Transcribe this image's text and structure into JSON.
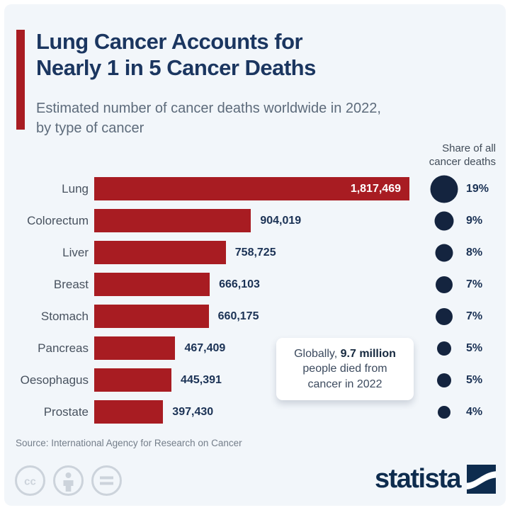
{
  "header": {
    "title_line1": "Lung Cancer Accounts for",
    "title_line2": "Nearly 1 in 5 Cancer Deaths",
    "subtitle_line1": "Estimated number of cancer deaths worldwide in 2022,",
    "subtitle_line2": "by type of cancer"
  },
  "share_header": {
    "line1": "Share of all",
    "line2": "cancer deaths"
  },
  "chart_data": {
    "type": "bar",
    "orientation": "horizontal",
    "title": "Lung Cancer Accounts for Nearly 1 in 5 Cancer Deaths",
    "subtitle": "Estimated number of cancer deaths worldwide in 2022, by type of cancer",
    "categories": [
      "Lung",
      "Colorectum",
      "Liver",
      "Breast",
      "Stomach",
      "Pancreas",
      "Oesophagus",
      "Prostate"
    ],
    "values": [
      1817469,
      904019,
      758725,
      666103,
      660175,
      467409,
      445391,
      397430
    ],
    "value_labels": [
      "1,817,469",
      "904,019",
      "758,725",
      "666,103",
      "660,175",
      "467,409",
      "445,391",
      "397,430"
    ],
    "share_pct": [
      19,
      9,
      8,
      7,
      7,
      5,
      5,
      4
    ],
    "share_labels": [
      "19%",
      "9%",
      "8%",
      "7%",
      "7%",
      "5%",
      "5%",
      "4%"
    ],
    "share_column_header": "Share of all cancer deaths",
    "xlim": [
      0,
      1817469
    ],
    "grid": false,
    "bar_color": "#a81c22",
    "circle_color": "#14243f"
  },
  "annotation": {
    "prefix": "Globally, ",
    "bold": "9.7 million",
    "line2": "people died from",
    "line3": "cancer in 2022"
  },
  "footer": {
    "source": "Source: International Agency for Research on Cancer",
    "license_icons": [
      "cc-icon",
      "attribution-person-icon",
      "equals-icon"
    ],
    "brand": "statista"
  },
  "colors": {
    "background": "#f2f6fa",
    "accent_red": "#a81c22",
    "navy_text": "#1b3660",
    "circle_navy": "#14243f",
    "subtitle_gray": "#5d6b7b",
    "source_gray": "#747e8a",
    "license_gray": "#ccd3db",
    "brand_navy": "#0e2c4e"
  }
}
